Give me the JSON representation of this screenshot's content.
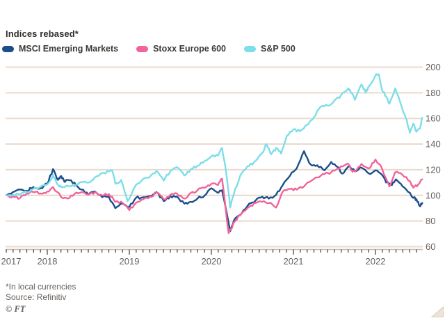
{
  "title": "Indices rebased*",
  "legend": [
    {
      "label": "MSCI Emerging Markets",
      "color": "#1A4E8C"
    },
    {
      "label": "Stoxx Europe 600",
      "color": "#F0649B"
    },
    {
      "label": "S&P 500",
      "color": "#7CDEE8"
    }
  ],
  "footnote": "*In local currencies",
  "source": "Source: Refinitiv",
  "credit": "© FT",
  "style": {
    "background": "#FFFFFF",
    "gridline_color": "#EAD9CC",
    "axis_line_color": "#C6B9AC",
    "tick_color": "#4D4845",
    "text_color": "#33302E",
    "muted_text_color": "#66605C",
    "corner_fill": "#EFE2D7",
    "corner_edge": "#D8CCC0"
  },
  "chart_data": {
    "type": "line",
    "title": "Indices rebased*",
    "xlabel": "",
    "ylabel": "",
    "x_unit": "decimal_year",
    "xlim": [
      2017.49,
      2022.58
    ],
    "ylim": [
      60,
      205
    ],
    "grid": true,
    "legend_position": "top-left",
    "x_tick_labels": [
      "2017",
      "2018",
      "2019",
      "2020",
      "2021",
      "2022"
    ],
    "x_tick_years": [
      2017,
      2018,
      2019,
      2020,
      2021,
      2022
    ],
    "y_ticks": [
      200,
      180,
      160,
      140,
      120,
      100,
      80,
      60
    ],
    "y_axis_side": "right",
    "series": [
      {
        "name": "MSCI Emerging Markets",
        "color": "#1A4E8C",
        "points": [
          [
            2017.5,
            100
          ],
          [
            2017.58,
            102.5
          ],
          [
            2017.67,
            104.5
          ],
          [
            2017.75,
            103.5
          ],
          [
            2017.83,
            106.5
          ],
          [
            2017.92,
            105.5
          ],
          [
            2018.0,
            109
          ],
          [
            2018.07,
            120.5
          ],
          [
            2018.13,
            112
          ],
          [
            2018.17,
            115
          ],
          [
            2018.21,
            110.5
          ],
          [
            2018.25,
            112
          ],
          [
            2018.33,
            110
          ],
          [
            2018.42,
            104.5
          ],
          [
            2018.5,
            100.5
          ],
          [
            2018.58,
            103
          ],
          [
            2018.67,
            98.5
          ],
          [
            2018.75,
            99
          ],
          [
            2018.83,
            90
          ],
          [
            2018.92,
            93.5
          ],
          [
            2019.0,
            91
          ],
          [
            2019.08,
            98
          ],
          [
            2019.17,
            98.5
          ],
          [
            2019.25,
            99.5
          ],
          [
            2019.33,
            102.5
          ],
          [
            2019.42,
            95.5
          ],
          [
            2019.5,
            99.5
          ],
          [
            2019.58,
            99
          ],
          [
            2019.67,
            93.5
          ],
          [
            2019.75,
            95
          ],
          [
            2019.83,
            97.5
          ],
          [
            2019.92,
            100
          ],
          [
            2020.0,
            105.5
          ],
          [
            2020.08,
            102
          ],
          [
            2020.13,
            104
          ],
          [
            2020.23,
            72
          ],
          [
            2020.29,
            82
          ],
          [
            2020.37,
            86
          ],
          [
            2020.46,
            93.5
          ],
          [
            2020.54,
            96
          ],
          [
            2020.62,
            99
          ],
          [
            2020.7,
            97.5
          ],
          [
            2020.79,
            100.5
          ],
          [
            2020.87,
            108
          ],
          [
            2020.96,
            115.5
          ],
          [
            2021.04,
            121
          ],
          [
            2021.13,
            134.5
          ],
          [
            2021.21,
            124
          ],
          [
            2021.29,
            123.5
          ],
          [
            2021.38,
            119.5
          ],
          [
            2021.46,
            126
          ],
          [
            2021.54,
            122
          ],
          [
            2021.6,
            117
          ],
          [
            2021.67,
            122.5
          ],
          [
            2021.75,
            119
          ],
          [
            2021.83,
            121.5
          ],
          [
            2021.92,
            117
          ],
          [
            2022.0,
            119.5
          ],
          [
            2022.08,
            116
          ],
          [
            2022.13,
            110
          ],
          [
            2022.2,
            108
          ],
          [
            2022.25,
            112.5
          ],
          [
            2022.33,
            107
          ],
          [
            2022.42,
            102
          ],
          [
            2022.46,
            98
          ],
          [
            2022.5,
            97
          ],
          [
            2022.54,
            91.5
          ],
          [
            2022.57,
            94
          ]
        ]
      },
      {
        "name": "Stoxx Europe 600",
        "color": "#F0649B",
        "points": [
          [
            2017.5,
            100
          ],
          [
            2017.58,
            99
          ],
          [
            2017.67,
            98
          ],
          [
            2017.75,
            101.5
          ],
          [
            2017.83,
            102.5
          ],
          [
            2017.92,
            101.5
          ],
          [
            2018.0,
            103
          ],
          [
            2018.07,
            106.5
          ],
          [
            2018.17,
            98.5
          ],
          [
            2018.25,
            97.5
          ],
          [
            2018.33,
            101
          ],
          [
            2018.42,
            102.5
          ],
          [
            2018.5,
            100.5
          ],
          [
            2018.58,
            102.5
          ],
          [
            2018.67,
            100
          ],
          [
            2018.75,
            101
          ],
          [
            2018.83,
            95
          ],
          [
            2018.92,
            94
          ],
          [
            2019.0,
            88.5
          ],
          [
            2019.08,
            94
          ],
          [
            2019.17,
            97
          ],
          [
            2019.25,
            99
          ],
          [
            2019.33,
            102
          ],
          [
            2019.42,
            97
          ],
          [
            2019.5,
            100.5
          ],
          [
            2019.58,
            101.5
          ],
          [
            2019.67,
            97.5
          ],
          [
            2019.75,
            102
          ],
          [
            2019.83,
            104
          ],
          [
            2019.92,
            106
          ],
          [
            2020.0,
            109
          ],
          [
            2020.08,
            108
          ],
          [
            2020.13,
            113
          ],
          [
            2020.21,
            70.5
          ],
          [
            2020.29,
            80
          ],
          [
            2020.37,
            86
          ],
          [
            2020.46,
            91
          ],
          [
            2020.54,
            94
          ],
          [
            2020.62,
            95
          ],
          [
            2020.7,
            94
          ],
          [
            2020.79,
            90.5
          ],
          [
            2020.87,
            103
          ],
          [
            2020.96,
            105
          ],
          [
            2021.04,
            104.5
          ],
          [
            2021.13,
            107
          ],
          [
            2021.21,
            111
          ],
          [
            2021.29,
            114
          ],
          [
            2021.38,
            116.5
          ],
          [
            2021.46,
            118
          ],
          [
            2021.54,
            121
          ],
          [
            2021.62,
            123.5
          ],
          [
            2021.67,
            124.5
          ],
          [
            2021.71,
            119.5
          ],
          [
            2021.75,
            118.5
          ],
          [
            2021.83,
            124.5
          ],
          [
            2021.92,
            121
          ],
          [
            2022.0,
            128
          ],
          [
            2022.08,
            121
          ],
          [
            2022.17,
            107
          ],
          [
            2022.24,
            118
          ],
          [
            2022.33,
            116
          ],
          [
            2022.42,
            111
          ],
          [
            2022.46,
            106
          ],
          [
            2022.52,
            108.5
          ],
          [
            2022.57,
            112.5
          ]
        ]
      },
      {
        "name": "S&P 500",
        "color": "#7CDEE8",
        "points": [
          [
            2017.5,
            100
          ],
          [
            2017.58,
            100.5
          ],
          [
            2017.67,
            100.5
          ],
          [
            2017.75,
            102.5
          ],
          [
            2017.83,
            105
          ],
          [
            2017.92,
            107
          ],
          [
            2018.0,
            108.5
          ],
          [
            2018.07,
            116
          ],
          [
            2018.12,
            109
          ],
          [
            2018.17,
            106.5
          ],
          [
            2018.25,
            107.5
          ],
          [
            2018.33,
            107
          ],
          [
            2018.42,
            110.5
          ],
          [
            2018.5,
            110
          ],
          [
            2018.58,
            114
          ],
          [
            2018.67,
            117.5
          ],
          [
            2018.75,
            118.5
          ],
          [
            2018.79,
            119.5
          ],
          [
            2018.83,
            109
          ],
          [
            2018.9,
            112
          ],
          [
            2018.98,
            95.5
          ],
          [
            2019.08,
            108
          ],
          [
            2019.17,
            113
          ],
          [
            2019.25,
            114.5
          ],
          [
            2019.33,
            119
          ],
          [
            2019.42,
            111.5
          ],
          [
            2019.5,
            119
          ],
          [
            2019.58,
            122
          ],
          [
            2019.67,
            115.5
          ],
          [
            2019.75,
            120.5
          ],
          [
            2019.83,
            123
          ],
          [
            2019.92,
            127
          ],
          [
            2020.0,
            130.5
          ],
          [
            2020.08,
            131
          ],
          [
            2020.13,
            137
          ],
          [
            2020.18,
            118
          ],
          [
            2020.23,
            90.5
          ],
          [
            2020.29,
            105
          ],
          [
            2020.37,
            117.5
          ],
          [
            2020.46,
            123
          ],
          [
            2020.54,
            127
          ],
          [
            2020.62,
            133
          ],
          [
            2020.67,
            140
          ],
          [
            2020.73,
            132
          ],
          [
            2020.79,
            137
          ],
          [
            2020.85,
            132.5
          ],
          [
            2020.92,
            146.5
          ],
          [
            2021.0,
            151.5
          ],
          [
            2021.08,
            150
          ],
          [
            2021.17,
            155
          ],
          [
            2021.25,
            161
          ],
          [
            2021.33,
            169
          ],
          [
            2021.42,
            170
          ],
          [
            2021.5,
            174
          ],
          [
            2021.58,
            178
          ],
          [
            2021.67,
            183.5
          ],
          [
            2021.71,
            180
          ],
          [
            2021.75,
            174.5
          ],
          [
            2021.83,
            186.5
          ],
          [
            2021.88,
            180
          ],
          [
            2021.92,
            185
          ],
          [
            2022.0,
            193.5
          ],
          [
            2022.04,
            194.5
          ],
          [
            2022.08,
            182
          ],
          [
            2022.13,
            177
          ],
          [
            2022.17,
            171.5
          ],
          [
            2022.24,
            183.5
          ],
          [
            2022.33,
            167
          ],
          [
            2022.38,
            159
          ],
          [
            2022.42,
            149
          ],
          [
            2022.46,
            156
          ],
          [
            2022.5,
            149.5
          ],
          [
            2022.54,
            152
          ],
          [
            2022.57,
            160.5
          ]
        ]
      }
    ]
  }
}
